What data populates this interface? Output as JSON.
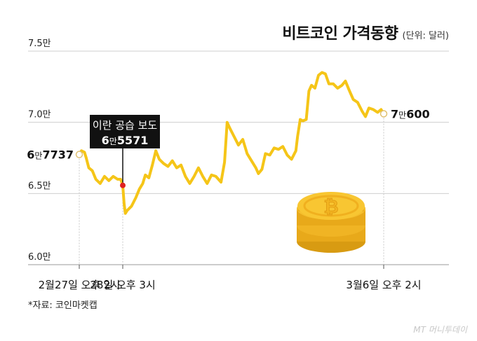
{
  "chart_data": {
    "type": "line",
    "title": "비트코인 가격동향",
    "unit_note": "(단위: 달러)",
    "y_ticks": [
      {
        "value": 75000,
        "label": "7.5만"
      },
      {
        "value": 70000,
        "label": "7.0만"
      },
      {
        "value": 65000,
        "label": "6.5만"
      },
      {
        "value": 60000,
        "label": "6.0만"
      }
    ],
    "ylim": [
      60000,
      75000
    ],
    "x_ticks": [
      {
        "t": 0,
        "label": "2월27일 오후 2시"
      },
      {
        "t": 1,
        "label": "28일 오후 3시"
      },
      {
        "t": 7,
        "label": "3월6일 오후 2시"
      }
    ],
    "xlim": [
      -0.5,
      8.5
    ],
    "grid": "horizontal",
    "series": [
      {
        "color": "#f5c518",
        "points": [
          [
            0.0,
            67737
          ],
          [
            0.05,
            68000
          ],
          [
            0.12,
            67900
          ],
          [
            0.16,
            67500
          ],
          [
            0.22,
            66800
          ],
          [
            0.3,
            66600
          ],
          [
            0.38,
            66000
          ],
          [
            0.48,
            65700
          ],
          [
            0.58,
            66200
          ],
          [
            0.68,
            65900
          ],
          [
            0.78,
            66200
          ],
          [
            0.88,
            66000
          ],
          [
            0.95,
            66000
          ],
          [
            1.0,
            65571
          ],
          [
            1.03,
            64300
          ],
          [
            1.06,
            63600
          ],
          [
            1.1,
            63800
          ],
          [
            1.2,
            64100
          ],
          [
            1.3,
            64700
          ],
          [
            1.38,
            65300
          ],
          [
            1.46,
            65700
          ],
          [
            1.52,
            66300
          ],
          [
            1.6,
            66100
          ],
          [
            1.68,
            67000
          ],
          [
            1.76,
            68000
          ],
          [
            1.84,
            67400
          ],
          [
            1.94,
            67100
          ],
          [
            2.04,
            66900
          ],
          [
            2.14,
            67300
          ],
          [
            2.24,
            66800
          ],
          [
            2.34,
            67000
          ],
          [
            2.44,
            66200
          ],
          [
            2.54,
            65700
          ],
          [
            2.64,
            66200
          ],
          [
            2.74,
            66800
          ],
          [
            2.84,
            66200
          ],
          [
            2.94,
            65700
          ],
          [
            3.04,
            66300
          ],
          [
            3.14,
            66200
          ],
          [
            3.26,
            65800
          ],
          [
            3.34,
            67200
          ],
          [
            3.4,
            70000
          ],
          [
            3.46,
            69600
          ],
          [
            3.56,
            69000
          ],
          [
            3.66,
            68400
          ],
          [
            3.76,
            68800
          ],
          [
            3.86,
            67800
          ],
          [
            3.96,
            67300
          ],
          [
            4.06,
            66800
          ],
          [
            4.12,
            66400
          ],
          [
            4.2,
            66700
          ],
          [
            4.28,
            67800
          ],
          [
            4.38,
            67700
          ],
          [
            4.48,
            68200
          ],
          [
            4.58,
            68100
          ],
          [
            4.68,
            68300
          ],
          [
            4.78,
            67700
          ],
          [
            4.88,
            67400
          ],
          [
            4.98,
            68000
          ],
          [
            5.02,
            69000
          ],
          [
            5.08,
            70200
          ],
          [
            5.14,
            70100
          ],
          [
            5.22,
            70200
          ],
          [
            5.28,
            72200
          ],
          [
            5.34,
            72600
          ],
          [
            5.42,
            72400
          ],
          [
            5.5,
            73300
          ],
          [
            5.58,
            73500
          ],
          [
            5.66,
            73400
          ],
          [
            5.74,
            72700
          ],
          [
            5.84,
            72700
          ],
          [
            5.94,
            72400
          ],
          [
            6.04,
            72600
          ],
          [
            6.12,
            72900
          ],
          [
            6.2,
            72300
          ],
          [
            6.3,
            71600
          ],
          [
            6.4,
            71400
          ],
          [
            6.5,
            70800
          ],
          [
            6.58,
            70400
          ],
          [
            6.66,
            71000
          ],
          [
            6.76,
            70900
          ],
          [
            6.86,
            70700
          ],
          [
            6.94,
            70900
          ],
          [
            7.0,
            70600
          ]
        ]
      }
    ],
    "annotations": [
      {
        "t": 0,
        "value": 67737,
        "label_pre": "6",
        "label_mid": "만",
        "label_post": "7737",
        "style": "hollow-point"
      },
      {
        "t": 1,
        "value": 65571,
        "callout": "이란 공습 보도",
        "label_pre": "6",
        "label_mid": "만",
        "label_post": "5571",
        "style": "red-point"
      },
      {
        "t": 7,
        "value": 70600,
        "label_pre": "7",
        "label_mid": "만",
        "label_post": "600",
        "style": "hollow-point"
      }
    ]
  },
  "source": "*자료: 코인마켓캡",
  "watermark": "MT 머니투데이",
  "colors": {
    "line": "#f5c518",
    "highlight": "#e02020",
    "callout_bg": "#111111",
    "grid": "#cfcfcf",
    "coin": "#f3b521"
  },
  "illustration": "bitcoin-coin-stack-icon"
}
